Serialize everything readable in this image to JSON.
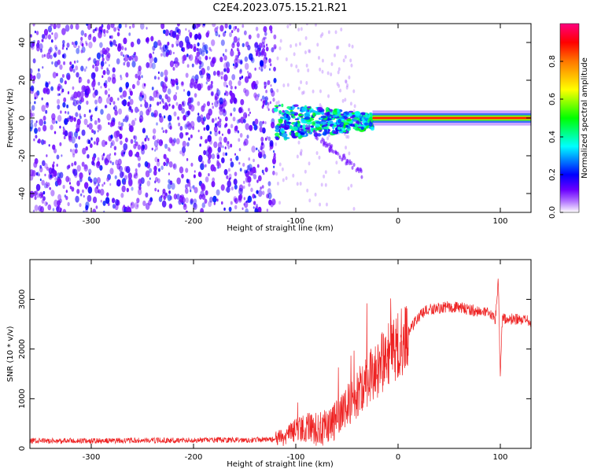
{
  "title": "C2E4.2023.075.15.21.R21",
  "colors": {
    "snr_line": "#ee2222",
    "frame": "#000000",
    "background": "#ffffff",
    "colormap": [
      "#ffffff",
      "#6a00ff",
      "#0000ff",
      "#00ffff",
      "#00ff00",
      "#ffff00",
      "#ff0000",
      "#ff007f"
    ]
  },
  "chart_data": [
    {
      "type": "heatmap",
      "xlabel": "Height of straight line (km)",
      "ylabel": "Frequency (Hz)",
      "xlim": [
        -360,
        130
      ],
      "ylim": [
        -50,
        50
      ],
      "x_ticks": [
        -300,
        -200,
        -100,
        0,
        100
      ],
      "y_ticks": [
        -40,
        -20,
        0,
        20,
        40
      ],
      "colorbar": {
        "label": "Normalized spectral amplitude",
        "range": [
          0,
          1
        ],
        "ticks": [
          "0.0",
          "0.2",
          "0.4",
          "0.6",
          "0.8"
        ]
      },
      "regions": [
        {
          "x": [
            -360,
            -120
          ],
          "frequency": [
            -50,
            50
          ],
          "amplitude": 0.1
        },
        {
          "x": [
            -120,
            -25
          ],
          "frequency": [
            -12,
            8
          ],
          "amplitude": 0.3
        },
        {
          "x": [
            -25,
            130
          ],
          "frequency": [
            -2,
            2
          ],
          "amplitude": 1.0
        }
      ]
    },
    {
      "type": "line",
      "xlabel": "Height of straight line (km)",
      "ylabel": "SNR (10 * v/v)",
      "xlim": [
        -360,
        130
      ],
      "ylim": [
        0,
        3800
      ],
      "x_ticks": [
        -300,
        -200,
        -100,
        0,
        100
      ],
      "y_ticks": [
        0,
        1000,
        2000,
        3000
      ],
      "series": [
        {
          "x": [
            -360,
            -300,
            -250,
            -200,
            -150,
            -120,
            -110,
            -100,
            -90,
            -80,
            -70,
            -60,
            -50,
            -40,
            -30,
            -20,
            -10,
            0,
            10,
            20,
            30,
            40,
            50,
            60,
            70,
            80,
            90,
            95,
            98,
            100,
            102,
            105,
            110,
            120,
            130
          ],
          "y": [
            150,
            150,
            160,
            165,
            170,
            180,
            220,
            380,
            420,
            380,
            450,
            550,
            800,
            1100,
            1400,
            1600,
            1900,
            2050,
            2350,
            2650,
            2800,
            2820,
            2850,
            2830,
            2800,
            2750,
            2700,
            2600,
            3400,
            1400,
            2650,
            2600,
            2600,
            2580,
            2550
          ]
        }
      ]
    }
  ]
}
